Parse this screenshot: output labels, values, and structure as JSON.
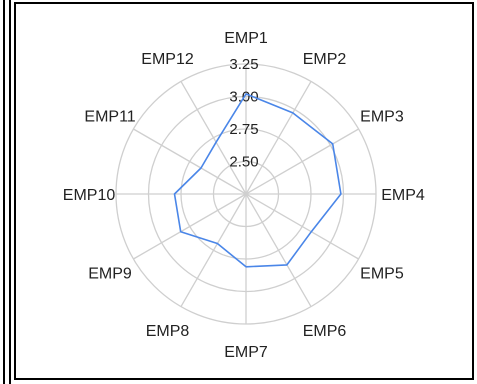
{
  "chart_data": {
    "type": "radar",
    "categories": [
      "EMP1",
      "EMP2",
      "EMP3",
      "EMP4",
      "EMP5",
      "EMP6",
      "EMP7",
      "EMP8",
      "EMP9",
      "EMP10",
      "EMP11",
      "EMP12"
    ],
    "series": [
      {
        "values": [
          3.02,
          2.97,
          3.02,
          2.98,
          2.83,
          2.88,
          2.81,
          2.69,
          2.83,
          2.8,
          2.65,
          2.71
        ],
        "color": "#4a86e8"
      }
    ],
    "rlim": [
      2.25,
      3.25
    ],
    "ticks": [
      2.5,
      2.75,
      3.0,
      3.25
    ],
    "tick_labels": [
      "2.50",
      "2.75",
      "3.00",
      "3.25"
    ],
    "grid": true
  }
}
